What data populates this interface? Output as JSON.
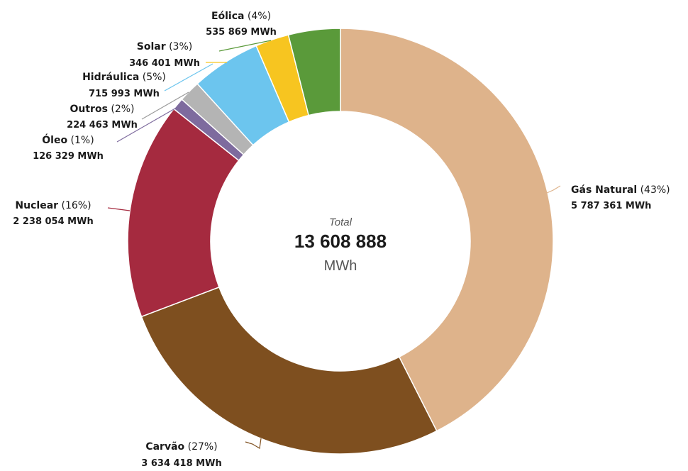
{
  "chart_data": {
    "type": "pie",
    "variant": "donut",
    "center": {
      "label": "Total",
      "value": "13 608 888",
      "unit": "MWh"
    },
    "slices": [
      {
        "key": "gas",
        "name": "Gás Natural",
        "percent_label": "(43%)",
        "value": 5787361,
        "value_label": "5 787 361 MWh",
        "color": "#DEB38B"
      },
      {
        "key": "carvao",
        "name": "Carvão",
        "percent_label": "(27%)",
        "value": 3634418,
        "value_label": "3 634 418 MWh",
        "color": "#7E4F1F"
      },
      {
        "key": "nuclear",
        "name": "Nuclear",
        "percent_label": "(16%)",
        "value": 2238054,
        "value_label": "2 238 054 MWh",
        "color": "#A52A3F"
      },
      {
        "key": "oleo",
        "name": "Óleo",
        "percent_label": "(1%)",
        "value": 126329,
        "value_label": "126 329 MWh",
        "color": "#7E6B9E"
      },
      {
        "key": "outros",
        "name": "Outros",
        "percent_label": "(2%)",
        "value": 224463,
        "value_label": "224 463 MWh",
        "color": "#B4B4B4"
      },
      {
        "key": "hidraulica",
        "name": "Hidráulica",
        "percent_label": "(5%)",
        "value": 715993,
        "value_label": "715 993 MWh",
        "color": "#6CC5EE"
      },
      {
        "key": "solar",
        "name": "Solar",
        "percent_label": "(3%)",
        "value": 346401,
        "value_label": "346 401 MWh",
        "color": "#F7C520"
      },
      {
        "key": "eolica",
        "name": "Eólica",
        "percent_label": "(4%)",
        "value": 535869,
        "value_label": "535 869 MWh",
        "color": "#5A9A3A"
      }
    ]
  }
}
